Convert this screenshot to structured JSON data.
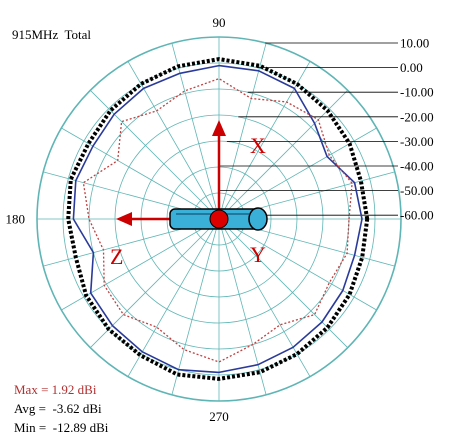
{
  "chart_data": {
    "type": "polar",
    "title": "915MHz  Total",
    "angle_labels": [
      {
        "angle": 90,
        "text": "90"
      },
      {
        "angle": 180,
        "text": "180"
      },
      {
        "angle": 270,
        "text": "270"
      }
    ],
    "radial_range": [
      -60,
      10
    ],
    "radial_ticks": [
      "10.00",
      "0.00",
      "-10.00",
      "-20.00",
      "-30.00",
      "-40.00",
      "-50.00",
      "-60.00"
    ],
    "radial_tick_values": [
      10,
      0,
      -10,
      -20,
      -30,
      -40,
      -50,
      -60
    ],
    "angular_grid_step_deg": 15,
    "axis_labels": {
      "x": "X",
      "y": "Y",
      "z": "Z"
    },
    "stats": [
      {
        "text": "Max = 1.92 dBi",
        "color": "#b03030"
      },
      {
        "text": "Avg =  -3.62 dBi",
        "color": "#000000"
      },
      {
        "text": "Min =  -12.89 dBi",
        "color": "#000000"
      }
    ],
    "colors": {
      "grid": "#5fb5b5",
      "total": "#000000",
      "blue": "#2a3a9a",
      "red": "#c04040",
      "arrow": "#cc0000",
      "antenna": "#3ab0d8"
    },
    "series": [
      {
        "id": "total",
        "style": "dotted-thick",
        "angles": [
          0,
          15,
          30,
          45,
          60,
          75,
          90,
          105,
          120,
          135,
          150,
          165,
          180,
          195,
          210,
          225,
          240,
          255,
          270,
          285,
          300,
          315,
          330,
          345
        ],
        "values": [
          -3,
          -3.5,
          -2,
          -1,
          0,
          1,
          1.5,
          0.8,
          0,
          -1,
          -2,
          -1,
          -2,
          -3,
          -1,
          0,
          0.5,
          1.92,
          1.5,
          1,
          0,
          -1,
          -2,
          -3
        ]
      },
      {
        "id": "blue",
        "style": "solid",
        "angles": [
          0,
          15,
          30,
          45,
          60,
          75,
          90,
          105,
          120,
          135,
          150,
          165,
          180,
          195,
          210,
          225,
          240,
          255,
          270,
          285,
          300,
          315,
          330,
          345
        ],
        "values": [
          -5,
          -6,
          -12,
          -8,
          -2,
          -1,
          -1,
          -2,
          -2,
          -3,
          -4,
          -3,
          -4,
          -10,
          -3,
          -2,
          -1,
          0,
          -1,
          -2,
          -3,
          -4,
          -5,
          -6
        ]
      },
      {
        "id": "red",
        "style": "dotted-thin",
        "angles": [
          0,
          15,
          30,
          45,
          60,
          75,
          90,
          105,
          120,
          135,
          150,
          165,
          180,
          195,
          210,
          225,
          240,
          255,
          270,
          285,
          300,
          315,
          330,
          345
        ],
        "values": [
          -10,
          -7,
          -11,
          -6,
          -8,
          -12,
          -6,
          -9,
          -12,
          -7,
          -15,
          -6,
          -10,
          -14,
          -9,
          -8,
          -12,
          -8,
          -5,
          -10,
          -13,
          -8,
          -11,
          -9
        ]
      }
    ]
  }
}
